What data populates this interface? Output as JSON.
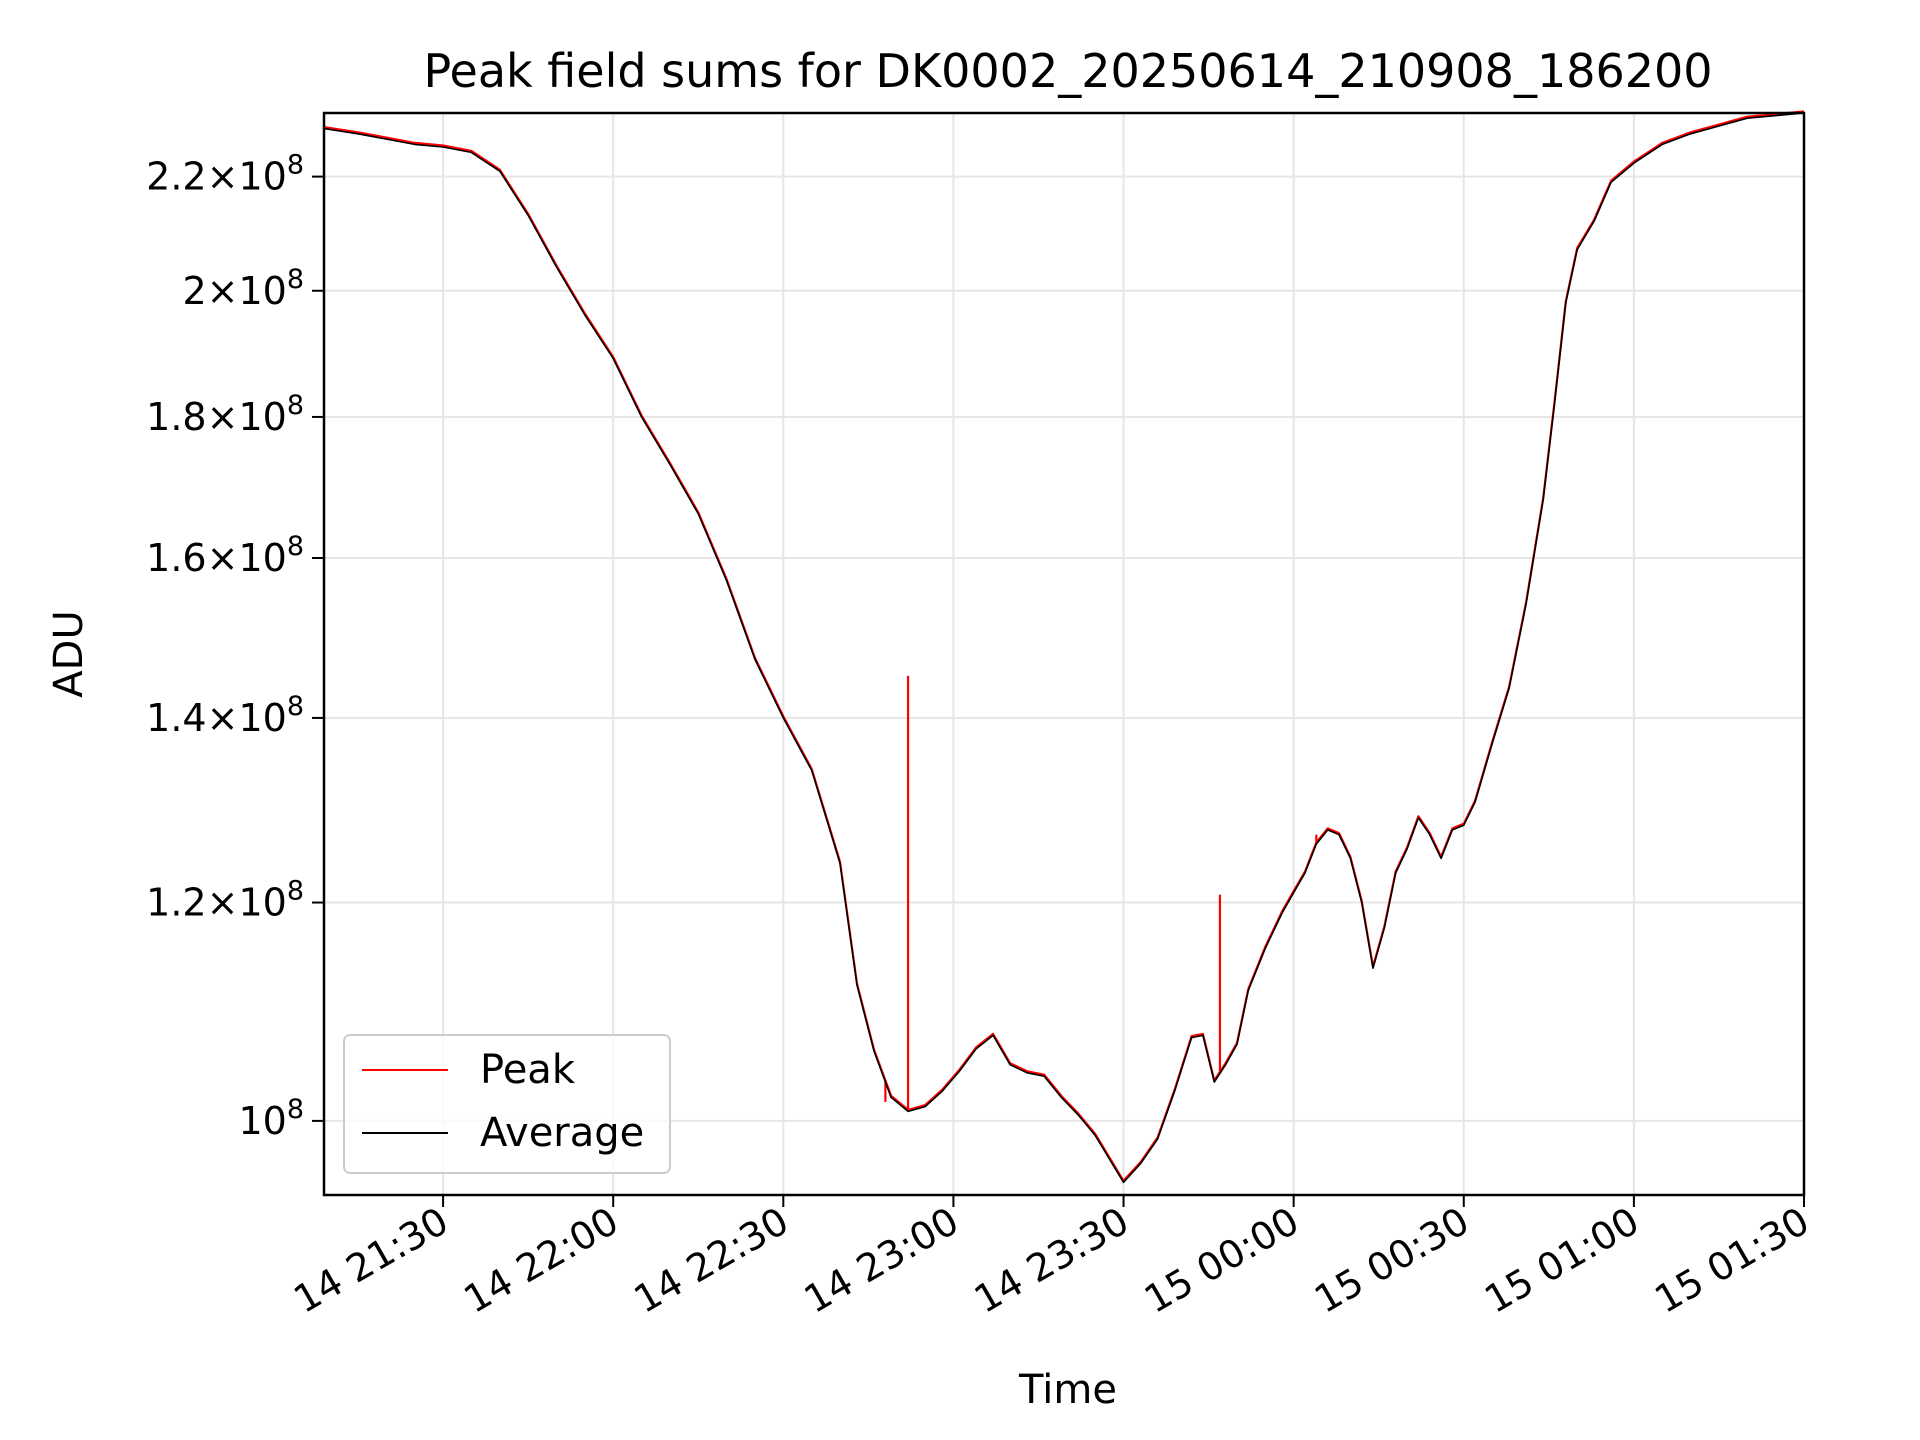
{
  "chart_data": {
    "type": "line",
    "title": "Peak field sums for DK0002_20250614_210908_186200",
    "xlabel": "Time",
    "ylabel": "ADU",
    "yscale": "log",
    "ylim": [
      94000000,
      232000000
    ],
    "xlim": [
      "21:09",
      "01:30"
    ],
    "grid": true,
    "legend_position": "lower-left",
    "x_ticks": [
      {
        "t": "21:30",
        "label": "14 21:30"
      },
      {
        "t": "22:00",
        "label": "14 22:00"
      },
      {
        "t": "22:30",
        "label": "14 22:30"
      },
      {
        "t": "23:00",
        "label": "14 23:00"
      },
      {
        "t": "23:30",
        "label": "14 23:30"
      },
      {
        "t": "00:00",
        "label": "15 00:00"
      },
      {
        "t": "00:30",
        "label": "15 00:30"
      },
      {
        "t": "01:00",
        "label": "15 01:00"
      },
      {
        "t": "01:30",
        "label": "15 01:30"
      }
    ],
    "y_ticks": [
      {
        "v": 100000000,
        "mant": "",
        "exp": "8"
      },
      {
        "v": 120000000,
        "mant": "1.2",
        "exp": "8"
      },
      {
        "v": 140000000,
        "mant": "1.4",
        "exp": "8"
      },
      {
        "v": 160000000,
        "mant": "1.6",
        "exp": "8"
      },
      {
        "v": 180000000,
        "mant": "1.8",
        "exp": "8"
      },
      {
        "v": 200000000,
        "mant": "2",
        "exp": "8"
      },
      {
        "v": 220000000,
        "mant": "2.2",
        "exp": "8"
      }
    ],
    "series": [
      {
        "name": "Peak",
        "color": "#ff0000",
        "spikes": [
          {
            "t": "22:52",
            "v": 145000000
          },
          {
            "t": "23:47",
            "v": 120800000
          },
          {
            "t": "00:04",
            "v": 127000000
          },
          {
            "t": "22:48",
            "v": 101600000
          }
        ]
      },
      {
        "name": "Average",
        "color": "#000000",
        "points": [
          [
            "21:09",
            229000000
          ],
          [
            "21:15",
            228000000
          ],
          [
            "21:20",
            227000000
          ],
          [
            "21:25",
            226000000
          ],
          [
            "21:30",
            225500000
          ],
          [
            "21:35",
            224500000
          ],
          [
            "21:40",
            221000000
          ],
          [
            "21:45",
            213000000
          ],
          [
            "21:50",
            204000000
          ],
          [
            "21:55",
            196000000
          ],
          [
            "22:00",
            189000000
          ],
          [
            "22:05",
            180000000
          ],
          [
            "22:10",
            173000000
          ],
          [
            "22:15",
            166000000
          ],
          [
            "22:20",
            157000000
          ],
          [
            "22:25",
            147000000
          ],
          [
            "22:30",
            140000000
          ],
          [
            "22:35",
            134000000
          ],
          [
            "22:40",
            124000000
          ],
          [
            "22:43",
            112000000
          ],
          [
            "22:46",
            106000000
          ],
          [
            "22:49",
            102000000
          ],
          [
            "22:52",
            100800000
          ],
          [
            "22:55",
            101200000
          ],
          [
            "22:58",
            102500000
          ],
          [
            "23:01",
            104200000
          ],
          [
            "23:04",
            106200000
          ],
          [
            "23:07",
            107400000
          ],
          [
            "23:10",
            104800000
          ],
          [
            "23:13",
            104100000
          ],
          [
            "23:16",
            103800000
          ],
          [
            "23:19",
            102000000
          ],
          [
            "23:22",
            100500000
          ],
          [
            "23:25",
            98800000
          ],
          [
            "23:28",
            96500000
          ],
          [
            "23:30",
            95000000
          ],
          [
            "23:33",
            96500000
          ],
          [
            "23:36",
            98500000
          ],
          [
            "23:39",
            102500000
          ],
          [
            "23:42",
            107200000
          ],
          [
            "23:44",
            107400000
          ],
          [
            "23:46",
            103300000
          ],
          [
            "23:48",
            104800000
          ],
          [
            "23:50",
            106600000
          ],
          [
            "23:52",
            111500000
          ],
          [
            "23:55",
            115500000
          ],
          [
            "23:58",
            119000000
          ],
          [
            "00:00",
            121000000
          ],
          [
            "00:02",
            123000000
          ],
          [
            "00:04",
            126000000
          ],
          [
            "00:06",
            127500000
          ],
          [
            "00:08",
            127000000
          ],
          [
            "00:10",
            124500000
          ],
          [
            "00:12",
            120000000
          ],
          [
            "00:14",
            113600000
          ],
          [
            "00:16",
            117500000
          ],
          [
            "00:18",
            123000000
          ],
          [
            "00:20",
            125500000
          ],
          [
            "00:22",
            128800000
          ],
          [
            "00:24",
            127000000
          ],
          [
            "00:26",
            124500000
          ],
          [
            "00:28",
            127500000
          ],
          [
            "00:30",
            128000000
          ],
          [
            "00:32",
            130500000
          ],
          [
            "00:35",
            137000000
          ],
          [
            "00:38",
            143500000
          ],
          [
            "00:41",
            154000000
          ],
          [
            "00:44",
            168000000
          ],
          [
            "00:46",
            182000000
          ],
          [
            "00:48",
            198000000
          ],
          [
            "00:50",
            207000000
          ],
          [
            "00:53",
            212000000
          ],
          [
            "00:56",
            219000000
          ],
          [
            "01:00",
            222500000
          ],
          [
            "01:05",
            226000000
          ],
          [
            "01:10",
            228000000
          ],
          [
            "01:15",
            229500000
          ],
          [
            "01:20",
            231000000
          ],
          [
            "01:30",
            232000000
          ]
        ]
      }
    ]
  }
}
